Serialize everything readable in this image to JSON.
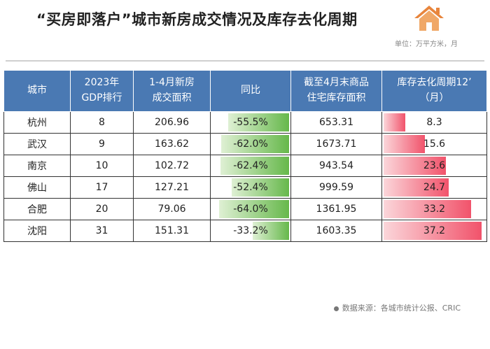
{
  "title": "“买房即落户”城市新房成交情况及库存去化周期",
  "unit": "单位：万平方米，月",
  "icon": "house-icon",
  "colors": {
    "header": "#4a79b3",
    "green_bar": "#66b84b",
    "red_bar": "#f1536b",
    "icon": "#e8853c"
  },
  "table": {
    "headers": [
      [
        "城市"
      ],
      [
        "2023年",
        "GDP排行"
      ],
      [
        "1-4月新房",
        "成交面积"
      ],
      [
        "同比"
      ],
      [
        "截至4月末商品",
        "住宅库存面积"
      ],
      [
        "库存去化周期12’",
        "（月）"
      ]
    ],
    "rows": [
      {
        "city": "杭州",
        "gdp_rank": "8",
        "area": "206.96",
        "yoy": "-55.5%",
        "yoy_value": -55.5,
        "stock": "653.31",
        "cycle": "8.3",
        "cycle_value": 8.3
      },
      {
        "city": "武汉",
        "gdp_rank": "9",
        "area": "163.62",
        "yoy": "-62.0%",
        "yoy_value": -62.0,
        "stock": "1673.71",
        "cycle": "15.6",
        "cycle_value": 15.6
      },
      {
        "city": "南京",
        "gdp_rank": "10",
        "area": "102.72",
        "yoy": "-62.4%",
        "yoy_value": -62.4,
        "stock": "943.54",
        "cycle": "23.6",
        "cycle_value": 23.6
      },
      {
        "city": "佛山",
        "gdp_rank": "17",
        "area": "127.21",
        "yoy": "-52.4%",
        "yoy_value": -52.4,
        "stock": "999.59",
        "cycle": "24.7",
        "cycle_value": 24.7
      },
      {
        "city": "合肥",
        "gdp_rank": "20",
        "area": "79.06",
        "yoy": "-64.0%",
        "yoy_value": -64.0,
        "stock": "1361.95",
        "cycle": "33.2",
        "cycle_value": 33.2
      },
      {
        "city": "沈阳",
        "gdp_rank": "31",
        "area": "151.31",
        "yoy": "-33.2%",
        "yoy_value": -33.2,
        "stock": "1603.35",
        "cycle": "37.2",
        "cycle_value": 37.2
      }
    ]
  },
  "footer": "数据来源：各城市统计公报、CRIC"
}
